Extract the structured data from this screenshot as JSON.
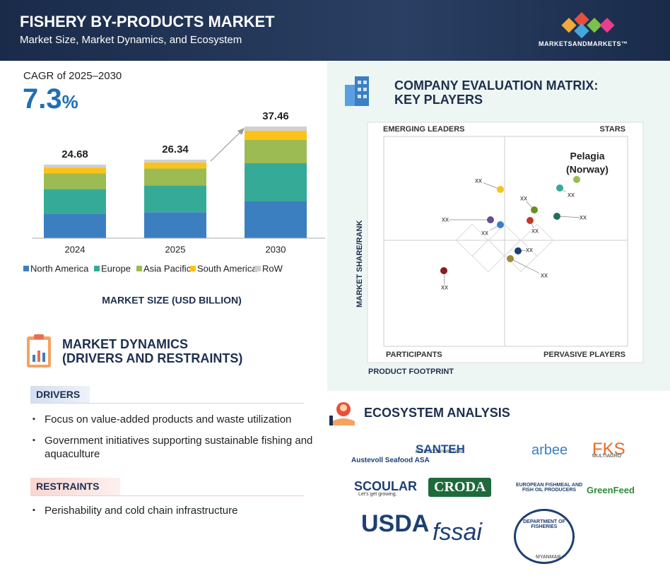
{
  "header": {
    "title": "FISHERY BY-PRODUCTS MARKET",
    "subtitle": "Market Size, Market Dynamics, and Ecosystem",
    "brand": "MARKETSANDMARKETS™"
  },
  "cagr": {
    "label": "CAGR of 2025–2030",
    "value": "7.3",
    "unit": "%"
  },
  "chart_data": {
    "type": "bar",
    "stacked": true,
    "categories": [
      "2024",
      "2025",
      "2030"
    ],
    "series": [
      {
        "name": "North America",
        "color": "#3c7fc1",
        "values": [
          8.23,
          8.7,
          12.33
        ]
      },
      {
        "name": "Europe",
        "color": "#35ab97",
        "values": [
          8.23,
          8.95,
          12.8
        ]
      },
      {
        "name": "Asia Pacific",
        "color": "#9cbb52",
        "values": [
          5.24,
          5.72,
          7.82
        ]
      },
      {
        "name": "South America",
        "color": "#fbc31a",
        "values": [
          2.0,
          1.99,
          3.08
        ]
      },
      {
        "name": "RoW",
        "color": "#d0d0d0",
        "values": [
          0.98,
          0.98,
          1.43
        ]
      }
    ],
    "totals": [
      24.68,
      26.34,
      37.46
    ],
    "x_label": "MARKET SIZE (USD BILLION)"
  },
  "matrix": {
    "title": [
      "COMPANY EVALUATION MATRIX:",
      "KEY PLAYERS"
    ],
    "quadrants": [
      "EMERGING LEADERS",
      "STARS",
      "PARTICIPANTS",
      "PERVASIVE PLAYERS"
    ],
    "x_label": "PRODUCT FOOTPRINT",
    "y_label": "MARKET SHARE/RANK",
    "highlight": [
      "Pelagia",
      "(Norway)"
    ],
    "point_labels": [
      "xx",
      "xx",
      "xx",
      "xx",
      "xx",
      "xx",
      "xx",
      "xx",
      "xx",
      "xx"
    ]
  },
  "dynamics": {
    "title": [
      "MARKET DYNAMICS",
      "(DRIVERS AND RESTRAINTS)"
    ],
    "drivers_heading": "DRIVERS",
    "drivers": [
      "Focus on value-added products and waste utilization",
      "Government initiatives supporting sustainable fishing and aquaculture"
    ],
    "restraints_heading": "RESTRAINTS",
    "restraints": [
      "Perishability and cold chain infrastructure"
    ]
  },
  "ecosystem": {
    "title": "ECOSYSTEM ANALYSIS",
    "logos": [
      {
        "name": "Austevoll Seafood ASA"
      },
      {
        "name": "SANTEH",
        "tagline": "FEEDS CORPORATION"
      },
      {
        "name": "arbee"
      },
      {
        "name": "FKS",
        "tagline": "MULTIAGRO"
      },
      {
        "name": "SCOULAR",
        "tagline": "Let's get growing."
      },
      {
        "name": "CRODA"
      },
      {
        "name": "EUROPEAN FISHMEAL AND FISH OIL PRODUCERS"
      },
      {
        "name": "GreenFeed"
      },
      {
        "name": "USDA"
      },
      {
        "name": "fssai"
      },
      {
        "name": "DEPARTMENT OF FISHERIES",
        "tagline": "MYANMAR"
      }
    ]
  }
}
